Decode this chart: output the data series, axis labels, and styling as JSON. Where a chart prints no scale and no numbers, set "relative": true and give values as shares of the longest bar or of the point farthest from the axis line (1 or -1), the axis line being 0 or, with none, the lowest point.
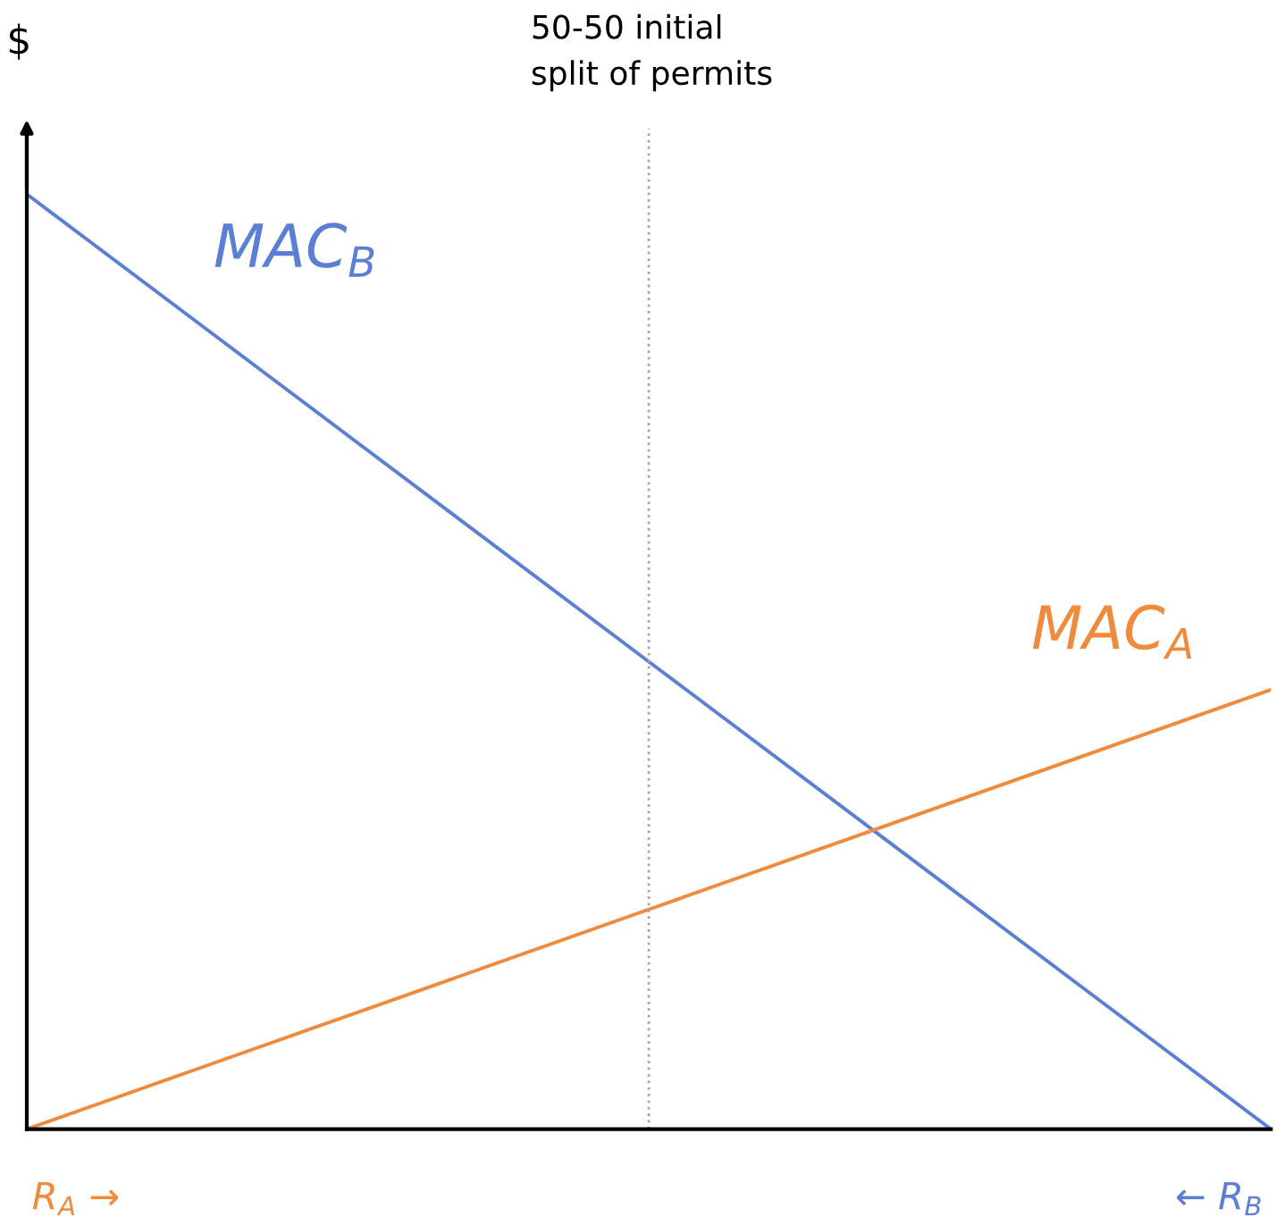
{
  "chart_data": {
    "type": "line",
    "relative": true,
    "ylabel": "$",
    "categories": [
      null,
      null,
      null
    ],
    "series": [
      {
        "name": "MAC$_{B}$",
        "color": "#5b7fd4",
        "values": [
          1,
          0.5,
          0
        ]
      },
      {
        "name": "MAC$_{A}$",
        "color": "#f08a3c",
        "values": [
          0,
          0.235,
          0.47
        ]
      }
    ],
    "annotations": [
      "50-50 initial\nsplit of permits",
      "R$_{A}$ →",
      "← R$_{B}$"
    ],
    "marker": "none",
    "line_style": "solid",
    "legend": false
  }
}
